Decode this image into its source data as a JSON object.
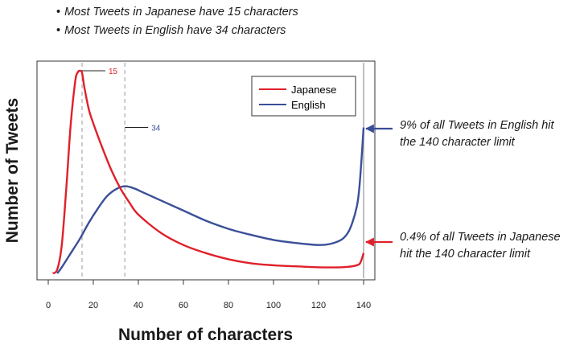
{
  "notes": [
    "Most Tweets in Japanese have 15 characters",
    "Most Tweets in English have 34 characters"
  ],
  "annotations": {
    "english": "9% of all Tweets in English hit the 140 character limit",
    "japanese": "0.4% of all Tweets in Japanese hit the 140 character limit",
    "english_lines": [
      "9% of all Tweets in English hit",
      "the 140 character limit"
    ],
    "japanese_lines": [
      "0.4% of all Tweets in Japanese",
      "hit the 140 character limit"
    ]
  },
  "colors": {
    "japanese": "#e0202a",
    "english": "#3a4f99",
    "guide": "#aaaaaa"
  },
  "chart_data": {
    "type": "line",
    "xlabel": "Number of characters",
    "ylabel": "Number of Tweets",
    "xlim": [
      -5,
      145
    ],
    "ylim": [
      0,
      1
    ],
    "xticks": [
      0,
      20,
      40,
      60,
      80,
      100,
      120,
      140
    ],
    "legend_position": "top-right",
    "series": [
      {
        "name": "Japanese",
        "key": "japanese",
        "peak_x": 15,
        "x": [
          2,
          4,
          6,
          8,
          10,
          12,
          13,
          14,
          15,
          16,
          18,
          20,
          24,
          28,
          32,
          36,
          40,
          50,
          60,
          70,
          80,
          90,
          100,
          110,
          120,
          130,
          135,
          138,
          139,
          140
        ],
        "y": [
          0.0,
          0.02,
          0.14,
          0.42,
          0.74,
          0.95,
          0.99,
          1.0,
          0.99,
          0.92,
          0.81,
          0.74,
          0.62,
          0.51,
          0.42,
          0.35,
          0.29,
          0.2,
          0.14,
          0.1,
          0.07,
          0.05,
          0.04,
          0.035,
          0.03,
          0.03,
          0.035,
          0.045,
          0.065,
          0.1
        ]
      },
      {
        "name": "English",
        "key": "english",
        "peak_x": 34,
        "x": [
          4,
          6,
          10,
          14,
          18,
          22,
          26,
          30,
          34,
          38,
          42,
          50,
          60,
          70,
          80,
          90,
          100,
          110,
          120,
          125,
          130,
          133,
          135,
          137,
          138,
          139,
          140
        ],
        "y": [
          0.0,
          0.03,
          0.1,
          0.17,
          0.25,
          0.32,
          0.38,
          0.415,
          0.43,
          0.42,
          0.4,
          0.36,
          0.31,
          0.26,
          0.22,
          0.19,
          0.165,
          0.15,
          0.14,
          0.145,
          0.165,
          0.2,
          0.25,
          0.33,
          0.41,
          0.55,
          0.72
        ]
      }
    ]
  }
}
